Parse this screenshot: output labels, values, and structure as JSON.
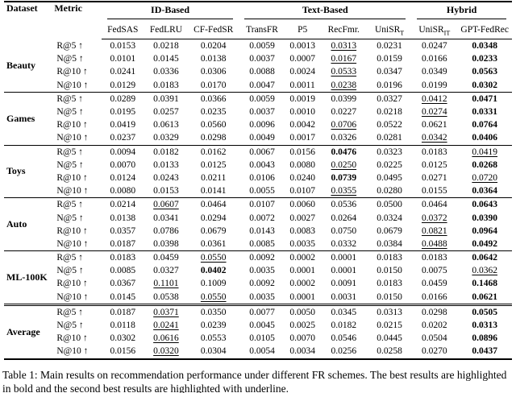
{
  "caption": "Table 1: Main results on recommendation performance under different FR schemes. The best results are highlighted in bold and the second best results are highlighted with underline.",
  "table": {
    "corner_headers": {
      "dataset": "Dataset",
      "metric": "Metric"
    },
    "groups": [
      {
        "label": "ID-Based",
        "methods": [
          {
            "name": "FedSAS",
            "sub": ""
          },
          {
            "name": "FedLRU",
            "sub": ""
          },
          {
            "name": "CF-FedSR",
            "sub": ""
          }
        ]
      },
      {
        "label": "Text-Based",
        "methods": [
          {
            "name": "TransFR",
            "sub": ""
          },
          {
            "name": "P5",
            "sub": ""
          },
          {
            "name": "RecFmr.",
            "sub": ""
          },
          {
            "name": "UniSR",
            "sub": "T"
          }
        ]
      },
      {
        "label": "Hybrid",
        "methods": [
          {
            "name": "UniSR",
            "sub": "IT"
          },
          {
            "name": "GPT-FedRec",
            "sub": ""
          }
        ]
      }
    ],
    "highlight_legend": {
      "bold": "best result",
      "underline": "second best result"
    },
    "datasets": [
      {
        "name": "Beauty",
        "rule_after": "single",
        "rows": [
          {
            "metric": "R@5 ↑",
            "values": [
              "0.0153",
              "0.0218",
              "0.0204",
              "0.0059",
              "0.0013",
              "u:0.0313",
              "0.0231",
              "0.0247",
              "b:0.0348"
            ]
          },
          {
            "metric": "N@5 ↑",
            "values": [
              "0.0101",
              "0.0145",
              "0.0138",
              "0.0037",
              "0.0007",
              "u:0.0167",
              "0.0159",
              "0.0166",
              "b:0.0233"
            ]
          },
          {
            "metric": "R@10 ↑",
            "values": [
              "0.0241",
              "0.0336",
              "0.0306",
              "0.0088",
              "0.0024",
              "u:0.0533",
              "0.0347",
              "0.0349",
              "b:0.0563"
            ]
          },
          {
            "metric": "N@10 ↑",
            "values": [
              "0.0129",
              "0.0183",
              "0.0170",
              "0.0047",
              "0.0011",
              "u:0.0238",
              "0.0196",
              "0.0199",
              "b:0.0302"
            ]
          }
        ]
      },
      {
        "name": "Games",
        "rule_after": "single",
        "rows": [
          {
            "metric": "R@5 ↑",
            "values": [
              "0.0289",
              "0.0391",
              "0.0366",
              "0.0059",
              "0.0019",
              "0.0399",
              "0.0327",
              "u:0.0412",
              "b:0.0471"
            ]
          },
          {
            "metric": "N@5 ↑",
            "values": [
              "0.0195",
              "0.0257",
              "0.0235",
              "0.0037",
              "0.0010",
              "0.0227",
              "0.0218",
              "u:0.0274",
              "b:0.0331"
            ]
          },
          {
            "metric": "R@10 ↑",
            "values": [
              "0.0419",
              "0.0613",
              "0.0560",
              "0.0096",
              "0.0042",
              "u:0.0706",
              "0.0522",
              "0.0621",
              "b:0.0764"
            ]
          },
          {
            "metric": "N@10 ↑",
            "values": [
              "0.0237",
              "0.0329",
              "0.0298",
              "0.0049",
              "0.0017",
              "0.0326",
              "0.0281",
              "u:0.0342",
              "b:0.0406"
            ]
          }
        ]
      },
      {
        "name": "Toys",
        "rule_after": "single",
        "rows": [
          {
            "metric": "R@5 ↑",
            "values": [
              "0.0094",
              "0.0182",
              "0.0162",
              "0.0067",
              "0.0156",
              "b:0.0476",
              "0.0323",
              "0.0183",
              "u:0.0419"
            ]
          },
          {
            "metric": "N@5 ↑",
            "values": [
              "0.0070",
              "0.0133",
              "0.0125",
              "0.0043",
              "0.0080",
              "u:0.0250",
              "0.0225",
              "0.0125",
              "b:0.0268"
            ]
          },
          {
            "metric": "R@10 ↑",
            "values": [
              "0.0124",
              "0.0243",
              "0.0211",
              "0.0106",
              "0.0240",
              "b:0.0739",
              "0.0495",
              "0.0271",
              "u:0.0720"
            ]
          },
          {
            "metric": "N@10 ↑",
            "values": [
              "0.0080",
              "0.0153",
              "0.0141",
              "0.0055",
              "0.0107",
              "u:0.0355",
              "0.0280",
              "0.0155",
              "b:0.0364"
            ]
          }
        ]
      },
      {
        "name": "Auto",
        "rule_after": "single",
        "rows": [
          {
            "metric": "R@5 ↑",
            "values": [
              "0.0214",
              "u:0.0607",
              "0.0464",
              "0.0107",
              "0.0060",
              "0.0536",
              "0.0500",
              "0.0464",
              "b:0.0643"
            ]
          },
          {
            "metric": "N@5 ↑",
            "values": [
              "0.0138",
              "0.0341",
              "0.0294",
              "0.0072",
              "0.0027",
              "0.0264",
              "0.0324",
              "u:0.0372",
              "b:0.0390"
            ]
          },
          {
            "metric": "R@10 ↑",
            "values": [
              "0.0357",
              "0.0786",
              "0.0679",
              "0.0143",
              "0.0083",
              "0.0750",
              "0.0679",
              "u:0.0821",
              "b:0.0964"
            ]
          },
          {
            "metric": "N@10 ↑",
            "values": [
              "0.0187",
              "0.0398",
              "0.0361",
              "0.0085",
              "0.0035",
              "0.0332",
              "0.0384",
              "u:0.0488",
              "b:0.0492"
            ]
          }
        ]
      },
      {
        "name": "ML-100K",
        "rule_after": "double",
        "rows": [
          {
            "metric": "R@5 ↑",
            "values": [
              "0.0183",
              "0.0459",
              "u:0.0550",
              "0.0092",
              "0.0002",
              "0.0001",
              "0.0183",
              "0.0183",
              "b:0.0642"
            ]
          },
          {
            "metric": "N@5 ↑",
            "values": [
              "0.0085",
              "0.0327",
              "b:0.0402",
              "0.0035",
              "0.0001",
              "0.0001",
              "0.0150",
              "0.0075",
              "u:0.0362"
            ]
          },
          {
            "metric": "R@10 ↑",
            "values": [
              "0.0367",
              "u:0.1101",
              "0.1009",
              "0.0092",
              "0.0002",
              "0.0091",
              "0.0183",
              "0.0459",
              "b:0.1468"
            ]
          },
          {
            "metric": "N@10 ↑",
            "values": [
              "0.0145",
              "0.0538",
              "u:0.0550",
              "0.0035",
              "0.0001",
              "0.0031",
              "0.0150",
              "0.0166",
              "b:0.0621"
            ]
          }
        ]
      },
      {
        "name": "Average",
        "rule_after": "none",
        "rows": [
          {
            "metric": "R@5 ↑",
            "values": [
              "0.0187",
              "u:0.0371",
              "0.0350",
              "0.0077",
              "0.0050",
              "0.0345",
              "0.0313",
              "0.0298",
              "b:0.0505"
            ]
          },
          {
            "metric": "N@5 ↑",
            "values": [
              "0.0118",
              "u:0.0241",
              "0.0239",
              "0.0045",
              "0.0025",
              "0.0182",
              "0.0215",
              "0.0202",
              "b:0.0313"
            ]
          },
          {
            "metric": "R@10 ↑",
            "values": [
              "0.0302",
              "u:0.0616",
              "0.0553",
              "0.0105",
              "0.0070",
              "0.0546",
              "0.0445",
              "0.0504",
              "b:0.0896"
            ]
          },
          {
            "metric": "N@10 ↑",
            "values": [
              "0.0156",
              "u:0.0320",
              "0.0304",
              "0.0054",
              "0.0034",
              "0.0256",
              "0.0258",
              "0.0270",
              "b:0.0437"
            ]
          }
        ]
      }
    ]
  }
}
